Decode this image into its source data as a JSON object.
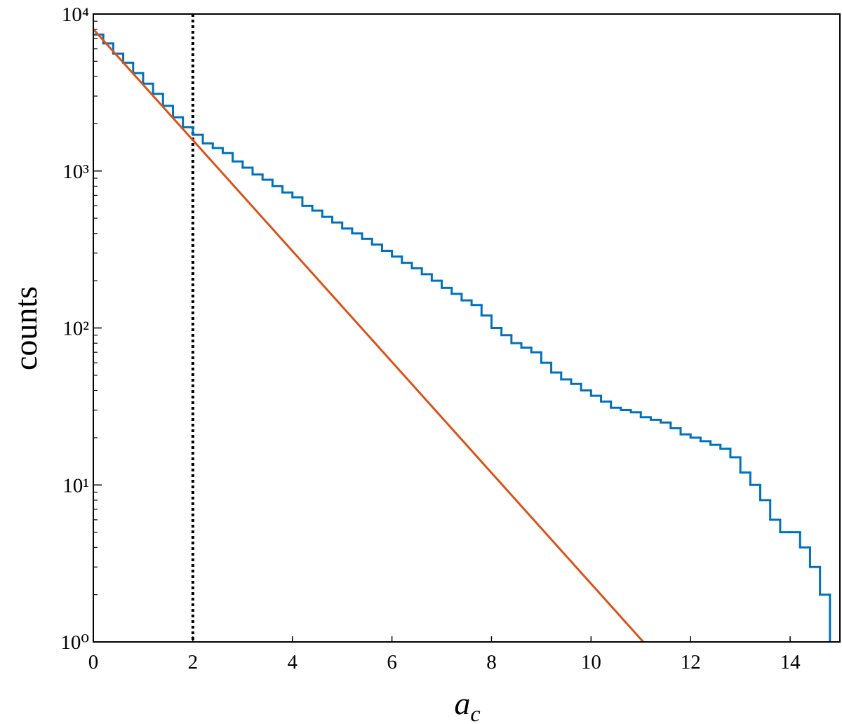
{
  "chart_data": {
    "type": "histogram",
    "xlabel": {
      "base": "a",
      "sub": "c"
    },
    "ylabel": "counts",
    "xlim": [
      0,
      15
    ],
    "ylim": [
      1,
      10000
    ],
    "yscale": "log",
    "yminor": true,
    "xticks": [
      0,
      2,
      4,
      6,
      8,
      10,
      12,
      14
    ],
    "yticks": [
      {
        "value": 1,
        "label": "10⁰"
      },
      {
        "value": 10,
        "label": "10¹"
      },
      {
        "value": 100,
        "label": "10²"
      },
      {
        "value": 1000,
        "label": "10³"
      },
      {
        "value": 10000,
        "label": "10⁴"
      }
    ],
    "bins": [
      0,
      0.2,
      0.4,
      0.6,
      0.8,
      1,
      1.2,
      1.4,
      1.6,
      1.8,
      2,
      2.2,
      2.4,
      2.6,
      2.8,
      3,
      3.2,
      3.4,
      3.6,
      3.8,
      4,
      4.2,
      4.4,
      4.6,
      4.8,
      5,
      5.2,
      5.4,
      5.6,
      5.8,
      6,
      6.2,
      6.4,
      6.6,
      6.8,
      7,
      7.2,
      7.4,
      7.6,
      7.8,
      8,
      8.2,
      8.4,
      8.6,
      8.8,
      9,
      9.2,
      9.4,
      9.6,
      9.8,
      10,
      10.2,
      10.4,
      10.6,
      10.8,
      11,
      11.2,
      11.4,
      11.6,
      11.8,
      12,
      12.2,
      12.4,
      12.6,
      12.8,
      13,
      13.2,
      13.4,
      13.6,
      13.8,
      14,
      14.2,
      14.4,
      14.6,
      14.8
    ],
    "values": [
      7400,
      6500,
      5600,
      4900,
      4200,
      3600,
      3100,
      2600,
      2200,
      1900,
      1700,
      1500,
      1400,
      1300,
      1150,
      1050,
      950,
      880,
      800,
      730,
      680,
      600,
      560,
      510,
      470,
      430,
      400,
      370,
      340,
      310,
      285,
      260,
      240,
      220,
      200,
      180,
      165,
      150,
      140,
      120,
      100,
      90,
      80,
      75,
      70,
      60,
      52,
      47,
      44,
      40,
      37,
      34,
      31,
      30,
      29,
      27,
      26,
      25,
      23,
      21,
      20,
      19,
      18,
      17,
      15,
      12,
      10,
      8,
      6,
      5,
      5,
      4,
      3,
      2
    ],
    "color": "#0072bd",
    "fit": {
      "x": [
        0,
        11.05
      ],
      "values": [
        8000,
        1
      ],
      "color": "#d95319"
    },
    "vline": {
      "x": 2,
      "color": "#000000",
      "style": "dotted"
    }
  }
}
